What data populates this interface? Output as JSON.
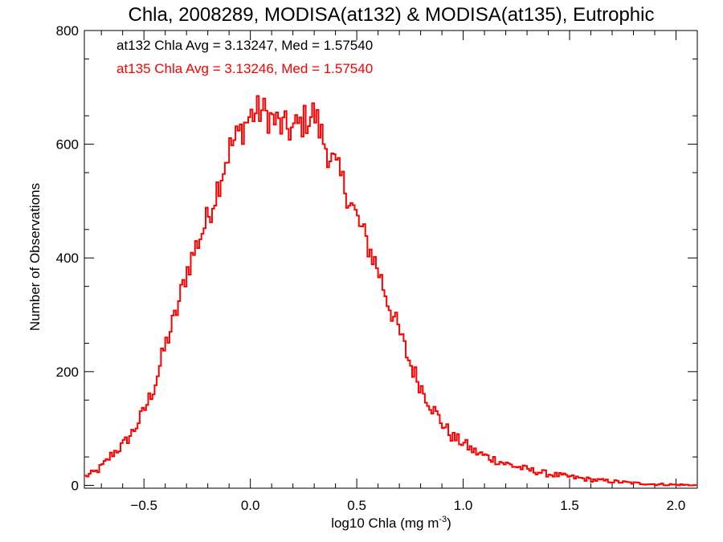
{
  "chart_data": {
    "type": "line",
    "title": "Chla, 2008289, MODISA(at132) & MODISA(at135), Eutrophic",
    "xlabel": "log10 Chla (mg m",
    "xlabel_sup": "-3",
    "xlabel_end": ")",
    "ylabel": "Number of Observations",
    "xlim": [
      -0.78,
      2.1
    ],
    "ylim": [
      -5,
      800
    ],
    "x_ticks": [
      -0.5,
      0.0,
      0.5,
      1.0,
      1.5,
      2.0
    ],
    "x_tick_labels": [
      "−0.5",
      "0.0",
      "0.5",
      "1.0",
      "1.5",
      "2.0"
    ],
    "y_ticks": [
      0,
      200,
      400,
      600,
      800
    ],
    "y_tick_labels": [
      "0",
      "200",
      "400",
      "600",
      "800"
    ],
    "annotations": [
      {
        "text": "at132 Chla Avg = 3.13247, Med = 1.57540",
        "color": "#000000"
      },
      {
        "text": "at135 Chla Avg = 3.13246, Med = 1.57540",
        "color": "#ff0000"
      }
    ],
    "bin_width": 0.01,
    "series": [
      {
        "color": "#ff0000",
        "x": [
          -0.78,
          -0.72,
          -0.68,
          -0.65,
          -0.6,
          -0.55,
          -0.5,
          -0.45,
          -0.4,
          -0.35,
          -0.3,
          -0.25,
          -0.2,
          -0.15,
          -0.1,
          -0.05,
          0.0,
          0.05,
          0.1,
          0.15,
          0.2,
          0.25,
          0.3,
          0.35,
          0.4,
          0.45,
          0.5,
          0.55,
          0.6,
          0.65,
          0.7,
          0.75,
          0.8,
          0.85,
          0.9,
          0.95,
          1.0,
          1.05,
          1.1,
          1.15,
          1.2,
          1.3,
          1.4,
          1.5,
          1.6,
          1.7,
          1.8,
          1.9,
          2.0,
          2.1
        ],
        "y": [
          15,
          25,
          40,
          55,
          70,
          95,
          130,
          175,
          245,
          300,
          375,
          425,
          470,
          530,
          590,
          620,
          650,
          660,
          645,
          630,
          625,
          640,
          655,
          600,
          560,
          520,
          470,
          425,
          380,
          320,
          270,
          215,
          175,
          140,
          110,
          85,
          75,
          60,
          52,
          45,
          38,
          28,
          20,
          15,
          10,
          7,
          4,
          2,
          1,
          0
        ]
      }
    ]
  }
}
